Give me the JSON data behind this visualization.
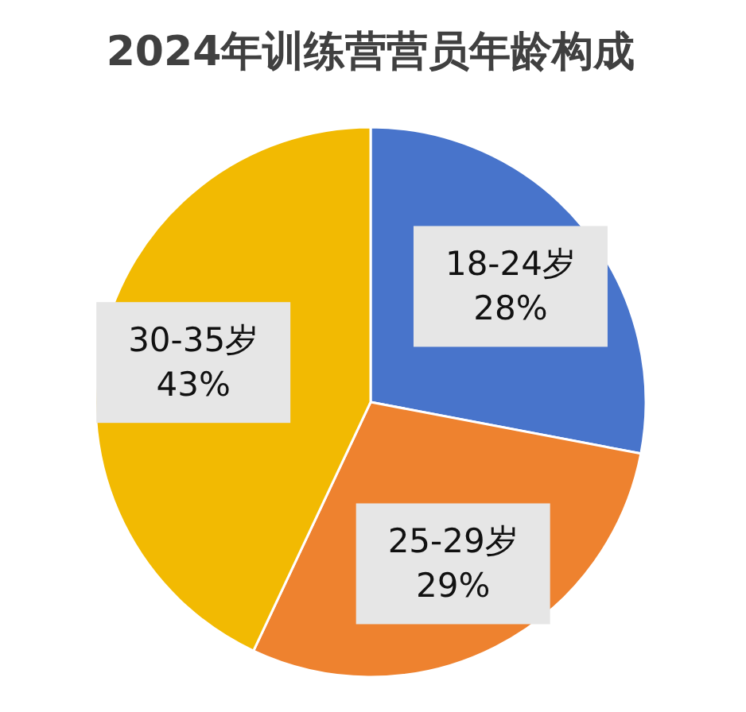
{
  "chart_data": {
    "type": "pie",
    "title": "2024年训练营营员年龄构成",
    "categories": [
      "18-24岁",
      "25-29岁",
      "30-35岁"
    ],
    "values": [
      28,
      29,
      43
    ],
    "colors": [
      "#4874cb",
      "#ee822f",
      "#f2ba02"
    ],
    "value_labels": [
      "28%",
      "29%",
      "43%"
    ]
  }
}
